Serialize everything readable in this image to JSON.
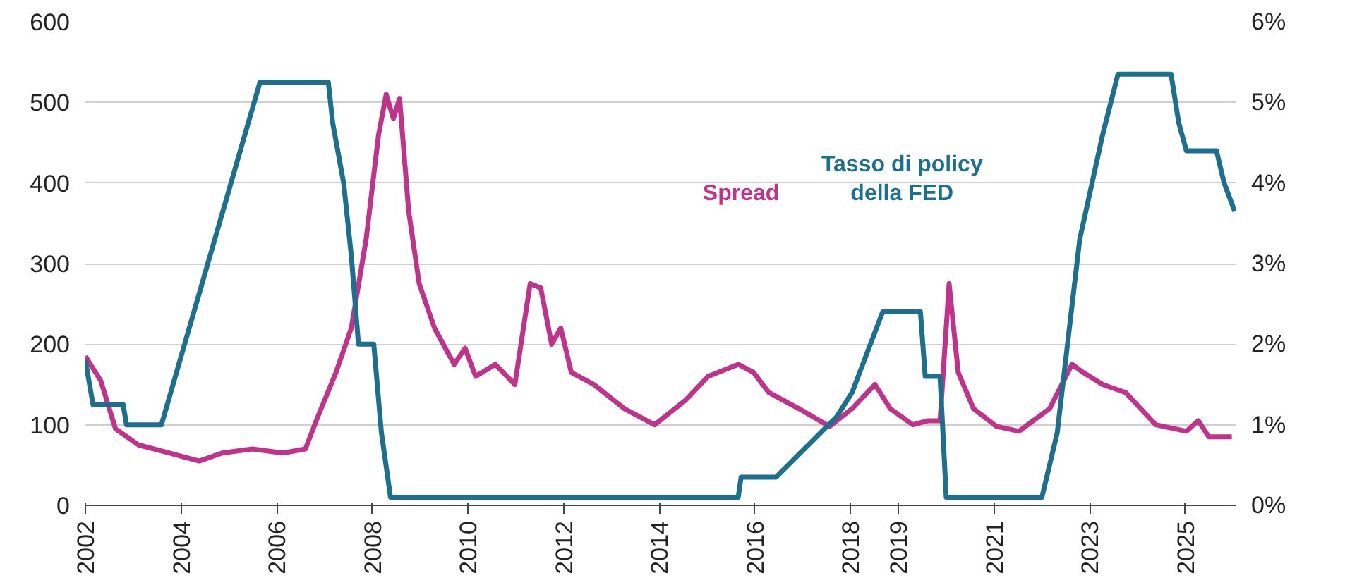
{
  "chart_data": {
    "type": "line",
    "legend": false,
    "grid": "y",
    "marker": "none",
    "line_style": "solid",
    "xlim": [
      2002,
      2026.05
    ],
    "xticks": [
      {
        "value": 2002,
        "label": "2002"
      },
      {
        "value": 2004,
        "label": "2004"
      },
      {
        "value": 2006,
        "label": "2006"
      },
      {
        "value": 2008,
        "label": "2008"
      },
      {
        "value": 2010,
        "label": "2010"
      },
      {
        "value": 2012,
        "label": "2012"
      },
      {
        "value": 2014,
        "label": "2014"
      },
      {
        "value": 2016,
        "label": "2016"
      },
      {
        "value": 2018,
        "label": "2018"
      },
      2019,
      2021,
      2023,
      2025
    ],
    "ylim": [
      0,
      600
    ],
    "yticks": [
      0,
      100,
      200,
      300,
      400,
      500,
      600
    ],
    "y2lim": [
      0,
      6
    ],
    "y2ticks": [
      {
        "value": 0,
        "label": "0%"
      },
      {
        "value": 1,
        "label": "1%"
      },
      {
        "value": 2,
        "label": "2%"
      },
      {
        "value": 3,
        "label": "3%"
      },
      {
        "value": 4,
        "label": "4%"
      },
      {
        "value": 5,
        "label": "5%"
      },
      {
        "value": 6,
        "label": "6%"
      }
    ],
    "series": [
      {
        "name": "Spread",
        "color": "#c0338a",
        "x": [
          2002.0,
          2002.32,
          2002.63,
          2003.11,
          2003.75,
          2004.38,
          2004.86,
          2005.49,
          2006.13,
          2006.6,
          2006.86,
          2007.24,
          2007.56,
          2007.87,
          2008.13,
          2008.29,
          2008.44,
          2008.57,
          2008.76,
          2008.98,
          2009.3,
          2009.71,
          2009.94,
          2010.16,
          2010.57,
          2010.98,
          2011.21,
          2011.3,
          2011.52,
          2011.75,
          2011.94,
          2012.16,
          2012.63,
          2013.27,
          2013.9,
          2014.54,
          2015.02,
          2015.65,
          2015.97,
          2016.29,
          2016.92,
          2017.56,
          2018.03,
          2018.51,
          2018.83,
          2019.3,
          2019.62,
          2019.87,
          2020.06,
          2020.25,
          2020.57,
          2021.05,
          2021.52,
          2022.16,
          2022.63,
          2022.86,
          2023.27,
          2023.75,
          2024.38,
          2025.02,
          2025.27,
          2025.49,
          2025.97
        ],
        "values": [
          185,
          155,
          95,
          75,
          65,
          55,
          65,
          70,
          65,
          70,
          110,
          165,
          220,
          330,
          460,
          510,
          480,
          505,
          365,
          275,
          220,
          175,
          195,
          160,
          175,
          150,
          240,
          275,
          270,
          200,
          220,
          165,
          150,
          120,
          100,
          130,
          160,
          175,
          165,
          140,
          120,
          98,
          120,
          150,
          120,
          100,
          105,
          105,
          275,
          165,
          120,
          98,
          92,
          120,
          175,
          165,
          150,
          140,
          100,
          92,
          105,
          85,
          85
        ]
      },
      {
        "name": "Tasso di policy della FED",
        "color": "#1d6f8f",
        "axis": "y2",
        "x": [
          2002.0,
          2002.16,
          2002.79,
          2002.86,
          2003.59,
          2005.65,
          2007.08,
          2007.17,
          2007.4,
          2007.56,
          2007.71,
          2008.03,
          2008.19,
          2008.38,
          2015.65,
          2015.71,
          2016.44,
          2017.71,
          2018.03,
          2018.67,
          2019.46,
          2019.56,
          2019.87,
          2020.0,
          2022.0,
          2022.32,
          2022.79,
          2023.27,
          2023.59,
          2024.7,
          2024.86,
          2025.02,
          2025.65,
          2025.81,
          2026.03
        ],
        "values": [
          1.8,
          1.25,
          1.25,
          1.0,
          1.0,
          5.25,
          5.25,
          4.75,
          4.0,
          3.1,
          2.0,
          2.0,
          0.9,
          0.1,
          0.1,
          0.35,
          0.35,
          1.1,
          1.4,
          2.4,
          2.4,
          1.6,
          1.6,
          0.1,
          0.1,
          0.9,
          3.3,
          4.6,
          5.35,
          5.35,
          4.75,
          4.4,
          4.4,
          4.0,
          3.65
        ]
      }
    ]
  }
}
